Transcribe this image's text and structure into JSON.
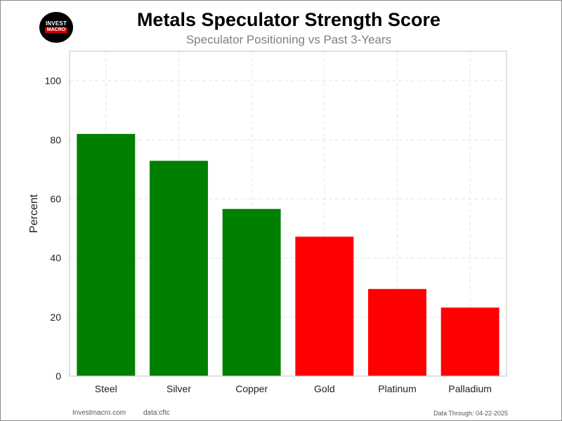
{
  "logo": {
    "line1": "INVEST",
    "line2": "MACRO"
  },
  "chart_data": {
    "type": "bar",
    "title": "Metals Speculator Strength Score",
    "subtitle": "Speculator Positioning vs Past 3-Years",
    "xlabel": "",
    "ylabel": "Percent",
    "categories": [
      "Steel",
      "Silver",
      "Copper",
      "Gold",
      "Platinum",
      "Palladium"
    ],
    "values": [
      82,
      72.9,
      56.6,
      47.2,
      29.5,
      23.2
    ],
    "bar_colors": [
      "#008000",
      "#008000",
      "#008000",
      "#ff0000",
      "#ff0000",
      "#ff0000"
    ],
    "ylim": [
      0,
      110
    ],
    "yticks": [
      0,
      20,
      40,
      60,
      80,
      100
    ],
    "grid": true,
    "legend": "none"
  },
  "footer": {
    "site": "Investmacro.com",
    "source": "data:cftc",
    "data_through": "Data Through: 04-22-2025"
  }
}
